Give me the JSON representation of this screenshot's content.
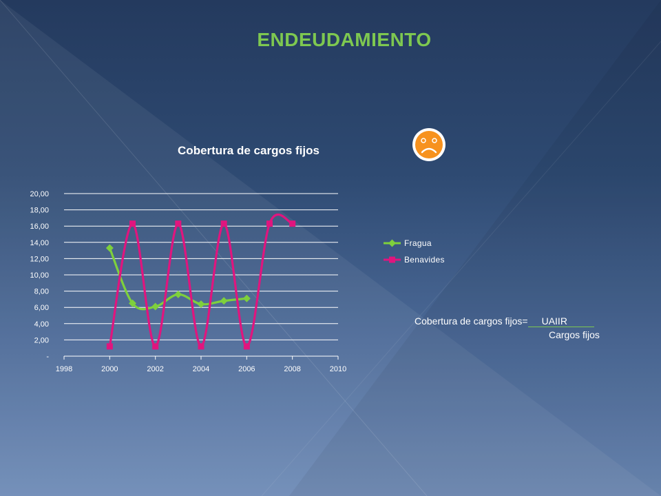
{
  "slide": {
    "title": "ENDEUDAMIENTO",
    "formula": {
      "lhs": "Cobertura de cargos fijos=",
      "numerator": "UAIIR",
      "denominator": "Cargos fijos"
    },
    "mood_icon": "sad-face-icon",
    "colors": {
      "title": "#7ec850",
      "background": "#2e4a72"
    }
  },
  "chart_data": {
    "type": "line",
    "title": "Cobertura de cargos fijos",
    "xlabel": "",
    "ylabel": "",
    "xlim": [
      1998,
      2010
    ],
    "ylim": [
      0,
      20
    ],
    "x_ticks": [
      1998,
      2000,
      2002,
      2004,
      2006,
      2008,
      2010
    ],
    "x_tick_labels": [
      "1998",
      "2000",
      "2002",
      "2004",
      "2006",
      "2008",
      "2010"
    ],
    "y_ticks": [
      0,
      2,
      4,
      6,
      8,
      10,
      12,
      14,
      16,
      18,
      20
    ],
    "y_tick_labels": [
      "-",
      "2,00",
      "4,00",
      "6,00",
      "8,00",
      "10,00",
      "12,00",
      "14,00",
      "16,00",
      "18,00",
      "20,00"
    ],
    "grid": true,
    "legend_position": "right",
    "smooth": true,
    "series": [
      {
        "name": "Fragua",
        "color": "#7ed03c",
        "marker": "diamond",
        "x": [
          2000,
          2001,
          2002,
          2003,
          2004,
          2005,
          2006
        ],
        "y": [
          13.3,
          6.5,
          6.1,
          7.6,
          6.4,
          6.8,
          7.1
        ]
      },
      {
        "name": "Benavides",
        "color": "#e0157e",
        "marker": "square",
        "x": [
          2000,
          2001,
          2002,
          2003,
          2004,
          2005,
          2006,
          2007,
          2008
        ],
        "y": [
          1.2,
          16.3,
          1.2,
          16.3,
          1.2,
          16.3,
          1.2,
          16.3,
          16.3
        ]
      }
    ]
  }
}
